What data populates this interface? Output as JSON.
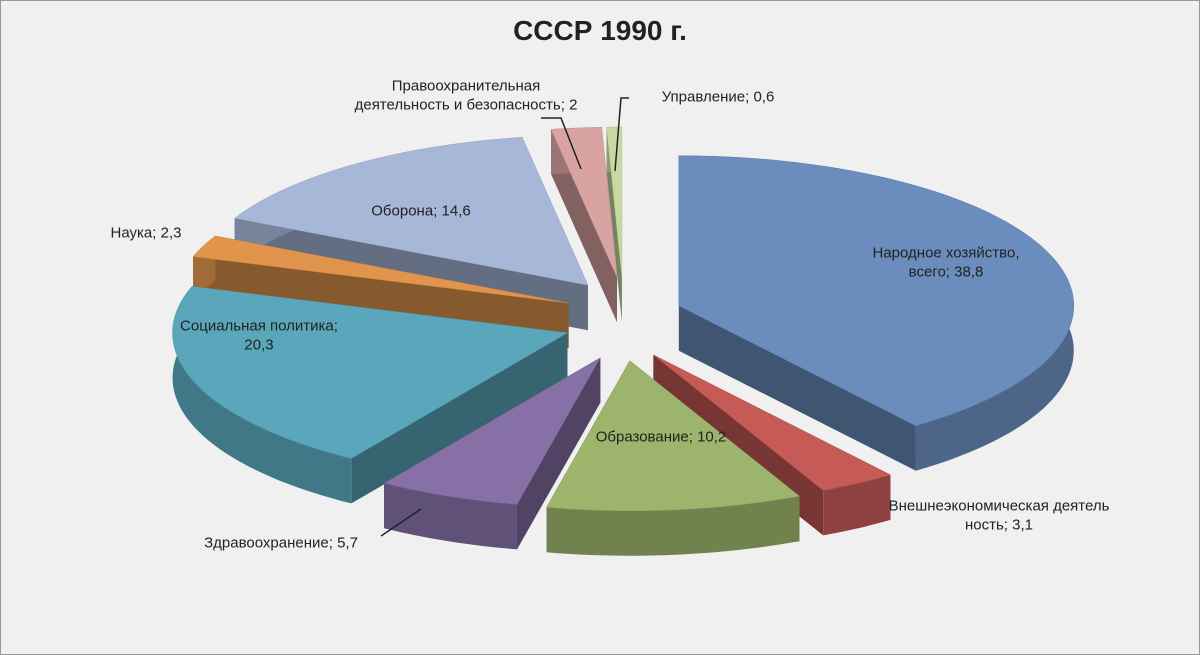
{
  "chart_data": {
    "type": "pie3d",
    "title": "СССР 1990 г.",
    "categories": [
      "Народное хозяйство, всего",
      "Внешнеэкономическая деятельность",
      "Образование",
      "Здравоохранение",
      "Социальная политика",
      "Наука",
      "Оборона",
      "Правоохранительная деятельность и безопасность",
      "Управление"
    ],
    "values": [
      38.8,
      3.1,
      10.2,
      5.7,
      20.3,
      2.3,
      14.6,
      2,
      0.6
    ],
    "value_labels": [
      "38,8",
      "3,1",
      "10,2",
      "5,7",
      "20,3",
      "2,3",
      "14,6",
      "2",
      "0,6"
    ],
    "label_separator": "; ",
    "colors": [
      "#6b8dbd",
      "#c65a57",
      "#9db46c",
      "#8670a6",
      "#5aa7bb",
      "#e0944c",
      "#a7b7d8",
      "#d9a3a2",
      "#c6d9a2"
    ]
  }
}
